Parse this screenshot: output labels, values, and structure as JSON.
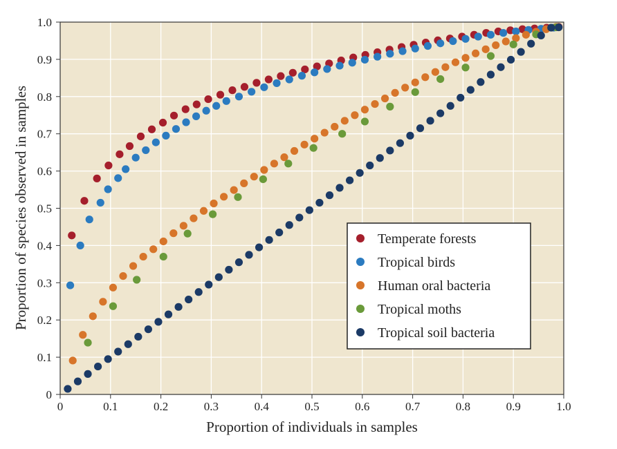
{
  "chart_data": {
    "type": "scatter",
    "title": "",
    "xlabel": "Proportion of individuals in samples",
    "ylabel": "Proportion of species observed in samples",
    "xlim": [
      0,
      1
    ],
    "ylim": [
      0,
      1
    ],
    "x_tick_labels": [
      "0",
      "0.1",
      "0.2",
      "0.3",
      "0.4",
      "0.5",
      "0.6",
      "0.7",
      "0.8",
      "0.9",
      "1.0"
    ],
    "y_tick_labels": [
      "0",
      "0.1",
      "0.2",
      "0.3",
      "0.4",
      "0.5",
      "0.6",
      "0.7",
      "0.8",
      "0.9",
      "1.0"
    ],
    "legend_position": "bottom-right",
    "background_color": "#efe6cf",
    "series": [
      {
        "name": "Temperate forests",
        "color": "#a51f2c",
        "x": [
          0.023,
          0.048,
          0.073,
          0.096,
          0.118,
          0.138,
          0.16,
          0.182,
          0.204,
          0.226,
          0.249,
          0.271,
          0.294,
          0.318,
          0.342,
          0.366,
          0.39,
          0.414,
          0.438,
          0.462,
          0.486,
          0.51,
          0.534,
          0.558,
          0.582,
          0.606,
          0.63,
          0.654,
          0.678,
          0.702,
          0.726,
          0.75,
          0.774,
          0.798,
          0.822,
          0.846,
          0.87,
          0.894,
          0.918,
          0.942,
          0.966,
          0.99
        ],
        "y": [
          0.427,
          0.52,
          0.58,
          0.615,
          0.645,
          0.667,
          0.693,
          0.712,
          0.73,
          0.749,
          0.766,
          0.779,
          0.793,
          0.805,
          0.817,
          0.826,
          0.837,
          0.846,
          0.855,
          0.864,
          0.873,
          0.881,
          0.889,
          0.897,
          0.905,
          0.912,
          0.919,
          0.926,
          0.933,
          0.939,
          0.945,
          0.951,
          0.956,
          0.961,
          0.966,
          0.971,
          0.975,
          0.978,
          0.981,
          0.983,
          0.985,
          0.987
        ]
      },
      {
        "name": "Tropical birds",
        "color": "#2b7bc0",
        "x": [
          0.02,
          0.04,
          0.058,
          0.08,
          0.095,
          0.115,
          0.13,
          0.15,
          0.17,
          0.19,
          0.21,
          0.23,
          0.25,
          0.27,
          0.29,
          0.31,
          0.33,
          0.355,
          0.38,
          0.405,
          0.43,
          0.455,
          0.48,
          0.505,
          0.53,
          0.555,
          0.58,
          0.605,
          0.63,
          0.655,
          0.68,
          0.705,
          0.73,
          0.755,
          0.78,
          0.805,
          0.83,
          0.855,
          0.88,
          0.905,
          0.93,
          0.955,
          0.98
        ],
        "y": [
          0.293,
          0.4,
          0.47,
          0.515,
          0.551,
          0.581,
          0.605,
          0.636,
          0.656,
          0.677,
          0.695,
          0.713,
          0.731,
          0.747,
          0.762,
          0.775,
          0.788,
          0.8,
          0.813,
          0.825,
          0.836,
          0.846,
          0.856,
          0.865,
          0.874,
          0.883,
          0.891,
          0.899,
          0.907,
          0.915,
          0.922,
          0.929,
          0.936,
          0.943,
          0.949,
          0.955,
          0.961,
          0.966,
          0.971,
          0.975,
          0.979,
          0.982,
          0.985
        ]
      },
      {
        "name": "Human oral bacteria",
        "color": "#d7752a",
        "x": [
          0.025,
          0.045,
          0.065,
          0.085,
          0.105,
          0.125,
          0.145,
          0.165,
          0.185,
          0.205,
          0.225,
          0.245,
          0.265,
          0.285,
          0.305,
          0.325,
          0.345,
          0.365,
          0.385,
          0.405,
          0.425,
          0.445,
          0.465,
          0.485,
          0.505,
          0.525,
          0.545,
          0.565,
          0.585,
          0.605,
          0.625,
          0.645,
          0.665,
          0.685,
          0.705,
          0.725,
          0.745,
          0.765,
          0.785,
          0.805,
          0.825,
          0.845,
          0.865,
          0.885,
          0.905,
          0.925,
          0.945,
          0.965,
          0.985
        ],
        "y": [
          0.091,
          0.16,
          0.21,
          0.249,
          0.287,
          0.318,
          0.345,
          0.37,
          0.39,
          0.411,
          0.433,
          0.453,
          0.473,
          0.493,
          0.513,
          0.531,
          0.549,
          0.567,
          0.585,
          0.603,
          0.62,
          0.637,
          0.654,
          0.671,
          0.687,
          0.703,
          0.719,
          0.735,
          0.75,
          0.765,
          0.78,
          0.795,
          0.81,
          0.824,
          0.838,
          0.852,
          0.866,
          0.879,
          0.892,
          0.904,
          0.916,
          0.927,
          0.938,
          0.948,
          0.957,
          0.966,
          0.974,
          0.981,
          0.987
        ]
      },
      {
        "name": "Tropical moths",
        "color": "#6a9a3a",
        "x": [
          0.055,
          0.105,
          0.152,
          0.205,
          0.253,
          0.303,
          0.353,
          0.403,
          0.453,
          0.503,
          0.56,
          0.605,
          0.655,
          0.705,
          0.755,
          0.805,
          0.855,
          0.9,
          0.945,
          0.985
        ],
        "y": [
          0.139,
          0.237,
          0.308,
          0.37,
          0.432,
          0.484,
          0.53,
          0.578,
          0.62,
          0.662,
          0.7,
          0.733,
          0.773,
          0.812,
          0.847,
          0.878,
          0.909,
          0.94,
          0.967,
          0.986
        ]
      },
      {
        "name": "Tropical soil bacteria",
        "color": "#1b3a66",
        "x": [
          0.015,
          0.035,
          0.055,
          0.075,
          0.095,
          0.115,
          0.135,
          0.155,
          0.175,
          0.195,
          0.215,
          0.235,
          0.255,
          0.275,
          0.295,
          0.315,
          0.335,
          0.355,
          0.375,
          0.395,
          0.415,
          0.435,
          0.455,
          0.475,
          0.495,
          0.515,
          0.535,
          0.555,
          0.575,
          0.595,
          0.615,
          0.635,
          0.655,
          0.675,
          0.695,
          0.715,
          0.735,
          0.755,
          0.775,
          0.795,
          0.815,
          0.835,
          0.855,
          0.875,
          0.895,
          0.915,
          0.935,
          0.955,
          0.975,
          0.99
        ],
        "y": [
          0.015,
          0.035,
          0.055,
          0.075,
          0.095,
          0.115,
          0.135,
          0.155,
          0.175,
          0.195,
          0.215,
          0.235,
          0.255,
          0.275,
          0.295,
          0.315,
          0.335,
          0.355,
          0.375,
          0.395,
          0.415,
          0.435,
          0.455,
          0.475,
          0.495,
          0.515,
          0.535,
          0.555,
          0.575,
          0.595,
          0.615,
          0.635,
          0.655,
          0.675,
          0.695,
          0.715,
          0.735,
          0.755,
          0.775,
          0.797,
          0.818,
          0.839,
          0.859,
          0.879,
          0.899,
          0.92,
          0.942,
          0.964,
          0.985,
          0.986
        ]
      }
    ]
  }
}
